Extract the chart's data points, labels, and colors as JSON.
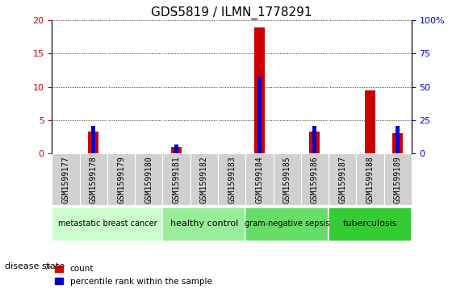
{
  "title": "GDS5819 / ILMN_1778291",
  "samples": [
    "GSM1599177",
    "GSM1599178",
    "GSM1599179",
    "GSM1599180",
    "GSM1599181",
    "GSM1599182",
    "GSM1599183",
    "GSM1599184",
    "GSM1599185",
    "GSM1599186",
    "GSM1599187",
    "GSM1599188",
    "GSM1599189"
  ],
  "count_values": [
    0,
    3.2,
    0,
    0,
    0.9,
    0,
    0,
    19.0,
    0,
    3.3,
    0,
    9.5,
    3.0
  ],
  "percentile_values": [
    0,
    4.1,
    0,
    0,
    1.3,
    0,
    0,
    11.5,
    0,
    4.1,
    0,
    0,
    4.1
  ],
  "ylim_left": [
    0,
    20
  ],
  "ylim_right": [
    0,
    100
  ],
  "yticks_left": [
    0,
    5,
    10,
    15,
    20
  ],
  "ytick_labels_right": [
    "0",
    "25",
    "50",
    "75",
    "100%"
  ],
  "yticks_right": [
    0,
    25,
    50,
    75,
    100
  ],
  "bar_color": "#cc0000",
  "percentile_color": "#0000cc",
  "bar_width": 0.38,
  "percentile_bar_width": 0.15,
  "groups": [
    {
      "label": "metastatic breast cancer",
      "start": 0,
      "end": 3,
      "color": "#ccffcc"
    },
    {
      "label": "healthy control",
      "start": 4,
      "end": 6,
      "color": "#99ee99"
    },
    {
      "label": "gram-negative sepsis",
      "start": 7,
      "end": 9,
      "color": "#66dd66"
    },
    {
      "label": "tuberculosis",
      "start": 10,
      "end": 12,
      "color": "#33cc33"
    }
  ],
  "disease_state_label": "disease state",
  "legend_count_label": "count",
  "legend_percentile_label": "percentile rank within the sample",
  "tick_color_left": "#cc0000",
  "tick_color_right": "#0000cc",
  "xlabel_fontsize": 7,
  "title_fontsize": 11,
  "tick_label_bg": "#d0d0d0",
  "plot_bg": "#ffffff"
}
